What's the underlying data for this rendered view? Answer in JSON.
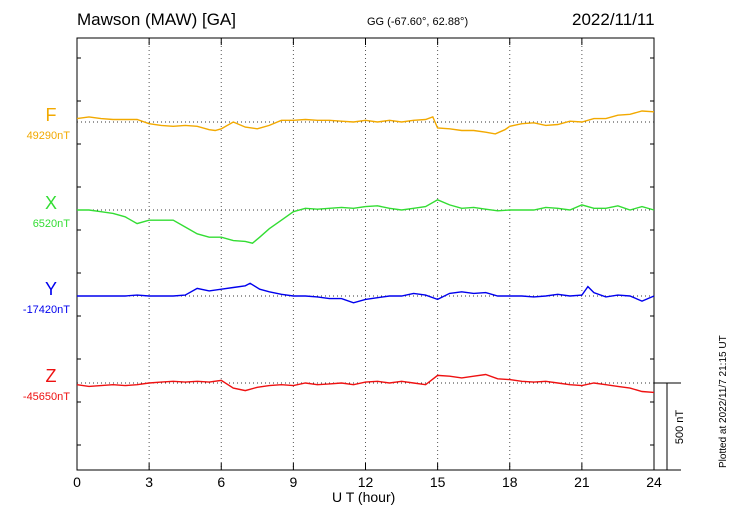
{
  "header": {
    "station": "Mawson (MAW)  [GA]",
    "coords": "GG (-67.60°,  62.88°)",
    "date": "2022/11/11"
  },
  "footer": {
    "xlabel": "U T (hour)",
    "plotted": "Plotted at 2022/11/7 21:15 UT",
    "scale_label": "500 nT"
  },
  "chart_data": {
    "type": "line",
    "title": "Mawson (MAW)  [GA]",
    "subtitle": "GG (-67.60°,  62.88°)",
    "date": "2022/11/11",
    "xlabel": "U T (hour)",
    "ylabel": "",
    "xlim": [
      0,
      24
    ],
    "x_ticks": [
      0,
      3,
      6,
      9,
      12,
      15,
      18,
      21,
      24
    ],
    "x_tick_labels": [
      "0",
      "3",
      "6",
      "9",
      "12",
      "15",
      "18",
      "21",
      "24"
    ],
    "grid": true,
    "scale_bar": {
      "label": "500 nT",
      "value_nT": 500
    },
    "series": [
      {
        "name": "F",
        "baseline_label": "49290nT",
        "baseline_nT": 49290,
        "color": "#f2a900",
        "points": [
          [
            0.0,
            49310
          ],
          [
            0.5,
            49320
          ],
          [
            1.0,
            49310
          ],
          [
            1.5,
            49305
          ],
          [
            2.0,
            49305
          ],
          [
            2.5,
            49305
          ],
          [
            3.0,
            49280
          ],
          [
            3.5,
            49270
          ],
          [
            4.0,
            49265
          ],
          [
            4.5,
            49270
          ],
          [
            5.0,
            49265
          ],
          [
            5.5,
            49245
          ],
          [
            5.75,
            49240
          ],
          [
            6.0,
            49250
          ],
          [
            6.5,
            49290
          ],
          [
            7.0,
            49260
          ],
          [
            7.5,
            49250
          ],
          [
            8.0,
            49270
          ],
          [
            8.5,
            49300
          ],
          [
            9.0,
            49300
          ],
          [
            9.5,
            49305
          ],
          [
            10.0,
            49300
          ],
          [
            10.5,
            49300
          ],
          [
            11.0,
            49295
          ],
          [
            11.5,
            49290
          ],
          [
            12.0,
            49300
          ],
          [
            12.5,
            49290
          ],
          [
            13.0,
            49300
          ],
          [
            13.5,
            49290
          ],
          [
            14.0,
            49300
          ],
          [
            14.5,
            49305
          ],
          [
            14.8,
            49320
          ],
          [
            15.0,
            49255
          ],
          [
            15.5,
            49250
          ],
          [
            16.0,
            49240
          ],
          [
            16.5,
            49240
          ],
          [
            17.0,
            49230
          ],
          [
            17.4,
            49220
          ],
          [
            17.8,
            49245
          ],
          [
            18.0,
            49265
          ],
          [
            18.5,
            49280
          ],
          [
            19.0,
            49285
          ],
          [
            19.5,
            49270
          ],
          [
            20.0,
            49275
          ],
          [
            20.5,
            49295
          ],
          [
            21.0,
            49290
          ],
          [
            21.5,
            49310
          ],
          [
            22.0,
            49310
          ],
          [
            22.5,
            49330
          ],
          [
            23.0,
            49335
          ],
          [
            23.5,
            49355
          ],
          [
            24.0,
            49350
          ]
        ]
      },
      {
        "name": "X",
        "baseline_label": "6520nT",
        "baseline_nT": 6520,
        "color": "#33dd33",
        "points": [
          [
            0.0,
            6520
          ],
          [
            0.5,
            6520
          ],
          [
            1.0,
            6510
          ],
          [
            1.5,
            6500
          ],
          [
            2.0,
            6480
          ],
          [
            2.5,
            6440
          ],
          [
            3.0,
            6460
          ],
          [
            3.5,
            6460
          ],
          [
            4.0,
            6460
          ],
          [
            4.5,
            6420
          ],
          [
            5.0,
            6380
          ],
          [
            5.5,
            6360
          ],
          [
            6.0,
            6360
          ],
          [
            6.5,
            6340
          ],
          [
            7.0,
            6335
          ],
          [
            7.3,
            6325
          ],
          [
            7.6,
            6360
          ],
          [
            8.0,
            6410
          ],
          [
            8.5,
            6460
          ],
          [
            9.0,
            6510
          ],
          [
            9.5,
            6530
          ],
          [
            10.0,
            6525
          ],
          [
            10.5,
            6530
          ],
          [
            11.0,
            6535
          ],
          [
            11.5,
            6530
          ],
          [
            12.0,
            6540
          ],
          [
            12.5,
            6545
          ],
          [
            13.0,
            6530
          ],
          [
            13.5,
            6520
          ],
          [
            14.0,
            6530
          ],
          [
            14.5,
            6540
          ],
          [
            15.0,
            6580
          ],
          [
            15.5,
            6550
          ],
          [
            16.0,
            6530
          ],
          [
            16.5,
            6535
          ],
          [
            17.0,
            6525
          ],
          [
            17.5,
            6515
          ],
          [
            18.0,
            6520
          ],
          [
            18.5,
            6520
          ],
          [
            19.0,
            6520
          ],
          [
            19.5,
            6535
          ],
          [
            20.0,
            6530
          ],
          [
            20.5,
            6520
          ],
          [
            21.0,
            6550
          ],
          [
            21.5,
            6530
          ],
          [
            22.0,
            6530
          ],
          [
            22.5,
            6545
          ],
          [
            23.0,
            6520
          ],
          [
            23.5,
            6540
          ],
          [
            24.0,
            6520
          ]
        ]
      },
      {
        "name": "Y",
        "baseline_label": "-17420nT",
        "baseline_nT": -17420,
        "color": "#0000ee",
        "points": [
          [
            0.0,
            -17420
          ],
          [
            0.5,
            -17420
          ],
          [
            1.0,
            -17420
          ],
          [
            1.5,
            -17420
          ],
          [
            2.0,
            -17420
          ],
          [
            2.5,
            -17415
          ],
          [
            3.0,
            -17420
          ],
          [
            3.5,
            -17420
          ],
          [
            4.0,
            -17420
          ],
          [
            4.5,
            -17415
          ],
          [
            5.0,
            -17375
          ],
          [
            5.5,
            -17390
          ],
          [
            6.0,
            -17380
          ],
          [
            6.5,
            -17370
          ],
          [
            7.0,
            -17360
          ],
          [
            7.2,
            -17345
          ],
          [
            7.6,
            -17380
          ],
          [
            8.0,
            -17395
          ],
          [
            8.5,
            -17410
          ],
          [
            9.0,
            -17420
          ],
          [
            9.5,
            -17420
          ],
          [
            10.0,
            -17425
          ],
          [
            10.5,
            -17435
          ],
          [
            11.0,
            -17435
          ],
          [
            11.5,
            -17460
          ],
          [
            12.0,
            -17440
          ],
          [
            12.5,
            -17430
          ],
          [
            13.0,
            -17420
          ],
          [
            13.5,
            -17420
          ],
          [
            14.0,
            -17405
          ],
          [
            14.5,
            -17415
          ],
          [
            15.0,
            -17440
          ],
          [
            15.5,
            -17405
          ],
          [
            16.0,
            -17395
          ],
          [
            16.5,
            -17405
          ],
          [
            17.0,
            -17400
          ],
          [
            17.5,
            -17420
          ],
          [
            18.0,
            -17420
          ],
          [
            18.5,
            -17420
          ],
          [
            19.0,
            -17425
          ],
          [
            19.5,
            -17420
          ],
          [
            20.0,
            -17410
          ],
          [
            20.5,
            -17420
          ],
          [
            21.0,
            -17415
          ],
          [
            21.25,
            -17365
          ],
          [
            21.5,
            -17400
          ],
          [
            22.0,
            -17425
          ],
          [
            22.5,
            -17415
          ],
          [
            23.0,
            -17420
          ],
          [
            23.5,
            -17450
          ],
          [
            24.0,
            -17420
          ]
        ]
      },
      {
        "name": "Z",
        "baseline_label": "-45650nT",
        "baseline_nT": -45650,
        "color": "#ee1111",
        "points": [
          [
            0.0,
            -45660
          ],
          [
            0.5,
            -45670
          ],
          [
            1.0,
            -45665
          ],
          [
            1.5,
            -45660
          ],
          [
            2.0,
            -45665
          ],
          [
            2.5,
            -45660
          ],
          [
            3.0,
            -45650
          ],
          [
            3.5,
            -45645
          ],
          [
            4.0,
            -45640
          ],
          [
            4.5,
            -45645
          ],
          [
            5.0,
            -45640
          ],
          [
            5.5,
            -45645
          ],
          [
            6.0,
            -45635
          ],
          [
            6.5,
            -45680
          ],
          [
            7.0,
            -45695
          ],
          [
            7.5,
            -45675
          ],
          [
            8.0,
            -45665
          ],
          [
            8.5,
            -45660
          ],
          [
            9.0,
            -45665
          ],
          [
            9.5,
            -45650
          ],
          [
            10.0,
            -45660
          ],
          [
            10.5,
            -45655
          ],
          [
            11.0,
            -45650
          ],
          [
            11.5,
            -45660
          ],
          [
            12.0,
            -45645
          ],
          [
            12.5,
            -45640
          ],
          [
            13.0,
            -45650
          ],
          [
            13.5,
            -45640
          ],
          [
            14.0,
            -45650
          ],
          [
            14.5,
            -45660
          ],
          [
            15.0,
            -45605
          ],
          [
            15.5,
            -45610
          ],
          [
            16.0,
            -45620
          ],
          [
            16.5,
            -45610
          ],
          [
            17.0,
            -45600
          ],
          [
            17.5,
            -45625
          ],
          [
            18.0,
            -45630
          ],
          [
            18.5,
            -45640
          ],
          [
            19.0,
            -45645
          ],
          [
            19.5,
            -45640
          ],
          [
            20.0,
            -45650
          ],
          [
            20.5,
            -45660
          ],
          [
            21.0,
            -45665
          ],
          [
            21.5,
            -45650
          ],
          [
            22.0,
            -45660
          ],
          [
            22.5,
            -45670
          ],
          [
            23.0,
            -45680
          ],
          [
            23.5,
            -45700
          ],
          [
            24.0,
            -45705
          ]
        ]
      }
    ]
  }
}
